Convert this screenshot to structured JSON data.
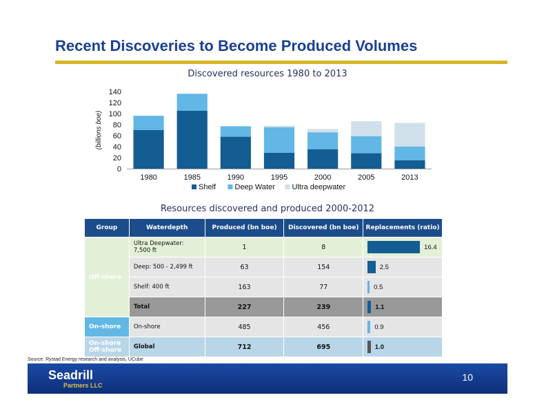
{
  "slide": {
    "title": "Recent Discoveries to Become Produced Volumes",
    "source": "Source: Rystad Energy research and analysis, UCube",
    "page_number": "10",
    "logo_name": "Seadrill",
    "logo_sub": "Partners LLC"
  },
  "colors": {
    "shelf": "#135d93",
    "deep": "#62b7e5",
    "ultra": "#cfe0ea",
    "title": "#1b3f93",
    "rule": "#d6b526"
  },
  "chart_data": {
    "type": "bar",
    "title": "Discovered resources 1980 to 2013",
    "ylabel": "(billions boe)",
    "xlabel": "",
    "ylim": [
      0,
      140
    ],
    "yticks": [
      0,
      20,
      40,
      60,
      80,
      100,
      120,
      140
    ],
    "categories": [
      "1980",
      "1985",
      "1990",
      "1995",
      "2000",
      "2005",
      "2013"
    ],
    "stacked": true,
    "legend_position": "bottom",
    "series": [
      {
        "name": "Shelf",
        "values": [
          70,
          105,
          58,
          29,
          35,
          28,
          15
        ]
      },
      {
        "name": "Deep Water",
        "values": [
          26,
          31,
          19,
          46,
          31,
          31,
          25
        ]
      },
      {
        "name": "Ultra deepwater",
        "values": [
          0,
          0,
          0,
          3,
          6,
          27,
          43
        ]
      }
    ]
  },
  "table": {
    "title": "Resources discovered and produced 2000-2012",
    "headers": {
      "group": "Group",
      "waterdepth": "Waterdepth",
      "produced": "Produced (bn boe)",
      "discovered": "Discovered (bn boe)",
      "replacements": "Replacements (ratio)"
    },
    "groups": {
      "offshore": "Off-shore",
      "onshore": "On-shore",
      "global_1": "On-shore",
      "global_2": "Off-shore"
    },
    "rows": [
      {
        "waterdepth": "Ultra Deepwater: 7,500 ft",
        "produced": "1",
        "discovered": "8",
        "ratio": 16.4,
        "ratio_label": "16.4"
      },
      {
        "waterdepth": "Deep: 500 - 2,499 ft",
        "produced": "63",
        "discovered": "154",
        "ratio": 2.5,
        "ratio_label": "2.5"
      },
      {
        "waterdepth": "Shelf: 400 ft",
        "produced": "163",
        "discovered": "77",
        "ratio": 0.5,
        "ratio_label": "0.5"
      },
      {
        "waterdepth": "Total",
        "produced": "227",
        "discovered": "239",
        "ratio": 1.1,
        "ratio_label": "1.1"
      },
      {
        "waterdepth": "On-shore",
        "produced": "485",
        "discovered": "456",
        "ratio": 0.9,
        "ratio_label": "0.9"
      },
      {
        "waterdepth": "Global",
        "produced": "712",
        "discovered": "695",
        "ratio": 1.0,
        "ratio_label": "1.0"
      }
    ],
    "bar_colors": [
      "#135d93",
      "#135d93",
      "#62b7e5",
      "#135d93",
      "#62b7e5",
      "#555555"
    ]
  }
}
